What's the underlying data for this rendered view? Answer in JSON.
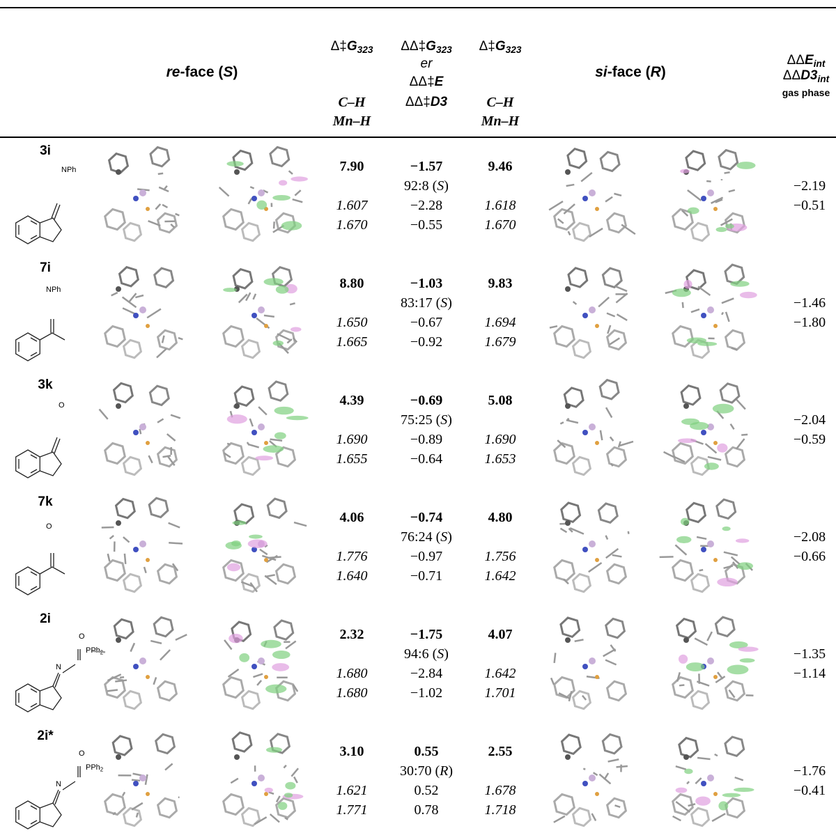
{
  "header": {
    "re_face": [
      {
        "text": "re",
        "style": "bold-italic"
      },
      {
        "text": "-face (",
        "style": "bold"
      },
      {
        "text": "S",
        "style": "bold-italic"
      },
      {
        "text": ")",
        "style": "bold"
      }
    ],
    "si_face": [
      {
        "text": "si",
        "style": "bold-italic"
      },
      {
        "text": "-face (",
        "style": "bold"
      },
      {
        "text": "R",
        "style": "bold-italic"
      },
      {
        "text": ")",
        "style": "bold"
      }
    ],
    "columns": [
      {
        "lines": [
          [
            {
              "text": "Δ‡",
              "style": "plain"
            },
            {
              "text": "G",
              "style": "bold-italic"
            },
            {
              "text": "323",
              "style": "bold-italic-sub"
            }
          ],
          [
            {
              "text": "C–H",
              "style": "serif-bold-italic"
            }
          ],
          [
            {
              "text": "Mn–H",
              "style": "serif-bold-italic"
            }
          ]
        ]
      },
      {
        "lines": [
          [
            {
              "text": "ΔΔ‡",
              "style": "plain"
            },
            {
              "text": "G",
              "style": "bold-italic"
            },
            {
              "text": "323",
              "style": "bold-italic-sub"
            }
          ],
          [
            {
              "text": "er",
              "style": "italic"
            }
          ],
          [
            {
              "text": "ΔΔ‡",
              "style": "plain"
            },
            {
              "text": "E",
              "style": "bold-italic"
            }
          ],
          [
            {
              "text": "ΔΔ‡",
              "style": "plain"
            },
            {
              "text": "D3",
              "style": "bold-italic"
            }
          ]
        ]
      },
      {
        "lines": [
          [
            {
              "text": "Δ‡",
              "style": "plain"
            },
            {
              "text": "G",
              "style": "bold-italic"
            },
            {
              "text": "323",
              "style": "bold-italic-sub"
            }
          ],
          [
            {
              "text": "C–H",
              "style": "serif-bold-italic"
            }
          ],
          [
            {
              "text": "Mn–H",
              "style": "serif-bold-italic"
            }
          ]
        ]
      },
      {
        "lines": [
          [
            {
              "text": "ΔΔ",
              "style": "plain"
            },
            {
              "text": "E",
              "style": "bold-italic"
            },
            {
              "text": "int",
              "style": "bold-italic-sub"
            }
          ],
          [
            {
              "text": "ΔΔ",
              "style": "plain"
            },
            {
              "text": "D3",
              "style": "bold-italic"
            },
            {
              "text": "int",
              "style": "bold-italic-sub"
            }
          ],
          [
            {
              "text": "gas phase",
              "style": "bold-small"
            }
          ]
        ]
      }
    ]
  },
  "rows": [
    {
      "label": "3i",
      "structure_labels": [
        [
          {
            "text": "NPh"
          }
        ]
      ],
      "dg_re": "7.90",
      "ddg": "−1.57",
      "dg_si": "9.46",
      "er": [
        {
          "text": "92:8 ("
        },
        {
          "text": "S",
          "style": "italic"
        },
        {
          "text": ")"
        }
      ],
      "ch_re": "1.607",
      "dde": "−2.28",
      "ch_si": "1.618",
      "mnh_re": "1.670",
      "dd3": "−0.55",
      "mnh_si": "1.670",
      "de_int": "−2.19",
      "dd3_int": "−0.51"
    },
    {
      "label": "7i",
      "structure_labels": [
        [
          {
            "text": "NPh"
          }
        ]
      ],
      "dg_re": "8.80",
      "ddg": "−1.03",
      "dg_si": "9.83",
      "er": [
        {
          "text": "83:17 ("
        },
        {
          "text": "S",
          "style": "italic"
        },
        {
          "text": ")"
        }
      ],
      "ch_re": "1.650",
      "dde": "−0.67",
      "ch_si": "1.694",
      "mnh_re": "1.665",
      "dd3": "−0.92",
      "mnh_si": "1.679",
      "de_int": "−1.46",
      "dd3_int": "−1.80"
    },
    {
      "label": "3k",
      "structure_labels": [
        [
          {
            "text": "O"
          }
        ]
      ],
      "dg_re": "4.39",
      "ddg": "−0.69",
      "dg_si": "5.08",
      "er": [
        {
          "text": "75:25 ("
        },
        {
          "text": "S",
          "style": "italic"
        },
        {
          "text": ")"
        }
      ],
      "ch_re": "1.690",
      "dde": "−0.89",
      "ch_si": "1.690",
      "mnh_re": "1.655",
      "dd3": "−0.64",
      "mnh_si": "1.653",
      "de_int": "−2.04",
      "dd3_int": "−0.59"
    },
    {
      "label": "7k",
      "structure_labels": [
        [
          {
            "text": "O"
          }
        ]
      ],
      "dg_re": "4.06",
      "ddg": "−0.74",
      "dg_si": "4.80",
      "er": [
        {
          "text": "76:24 ("
        },
        {
          "text": "S",
          "style": "italic"
        },
        {
          "text": ")"
        }
      ],
      "ch_re": "1.776",
      "dde": "−0.97",
      "ch_si": "1.756",
      "mnh_re": "1.640",
      "dd3": "−0.71",
      "mnh_si": "1.642",
      "de_int": "−2.08",
      "dd3_int": "−0.66"
    },
    {
      "label": "2i",
      "structure_labels": [
        [
          {
            "text": "O"
          }
        ],
        [
          {
            "text": "N"
          }
        ],
        [
          {
            "text": "PPh"
          },
          {
            "text": "2",
            "style": "sub"
          }
        ]
      ],
      "dg_re": "2.32",
      "ddg": "−1.75",
      "dg_si": "4.07",
      "er": [
        {
          "text": "94:6 ("
        },
        {
          "text": "S",
          "style": "italic"
        },
        {
          "text": ")"
        }
      ],
      "ch_re": "1.680",
      "dde": "−2.84",
      "ch_si": "1.642",
      "mnh_re": "1.680",
      "dd3": "−1.02",
      "mnh_si": "1.701",
      "de_int": "−1.35",
      "dd3_int": "−1.14"
    },
    {
      "label": "2i*",
      "structure_labels": [
        [
          {
            "text": "O"
          }
        ],
        [
          {
            "text": "N"
          }
        ],
        [
          {
            "text": "PPh"
          },
          {
            "text": "2",
            "style": "sub"
          }
        ]
      ],
      "dg_re": "3.10",
      "ddg": "0.55",
      "dg_si": "2.55",
      "er": [
        {
          "text": "30:70 ("
        },
        {
          "text": "R",
          "style": "italic"
        },
        {
          "text": ")"
        }
      ],
      "ch_re": "1.621",
      "dde": "0.52",
      "ch_si": "1.678",
      "mnh_re": "1.771",
      "dd3": "0.78",
      "mnh_si": "1.718",
      "de_int": "−1.76",
      "dd3_int": "−0.41"
    }
  ]
}
